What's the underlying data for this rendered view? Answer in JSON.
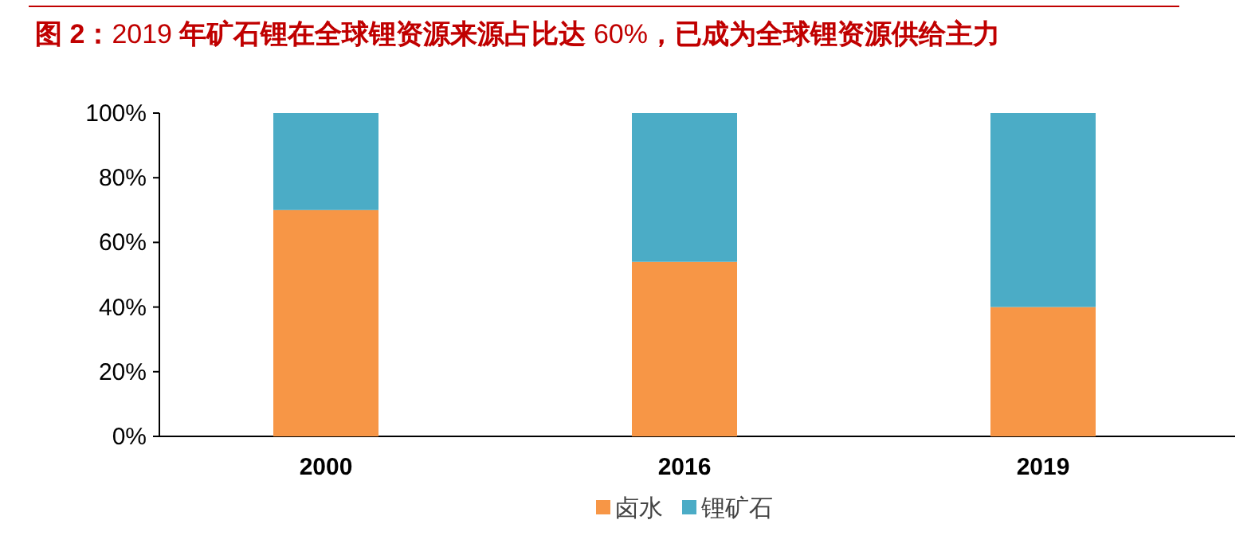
{
  "chart_data": {
    "type": "bar",
    "stacked": true,
    "title": "**图 2：**2019 **年矿石锂在全球锂资源来源占比达** 60%**，已成为全球锂资源供给主力**",
    "categories": [
      "2000",
      "2016",
      "2019"
    ],
    "series": [
      {
        "name": "卤水",
        "color": "#f79646",
        "values": [
          70,
          54,
          40
        ]
      },
      {
        "name": "锂矿石",
        "color": "#4bacc6",
        "values": [
          30,
          46,
          60
        ]
      }
    ],
    "ylim": [
      0,
      100
    ],
    "yticks": [
      {
        "value": 0,
        "label": "0%"
      },
      {
        "value": 20,
        "label": "20%"
      },
      {
        "value": 40,
        "label": "40%"
      },
      {
        "value": 60,
        "label": "60%"
      },
      {
        "value": 80,
        "label": "80%"
      },
      {
        "value": 100,
        "label": "100%"
      }
    ],
    "legend": "bottom"
  }
}
